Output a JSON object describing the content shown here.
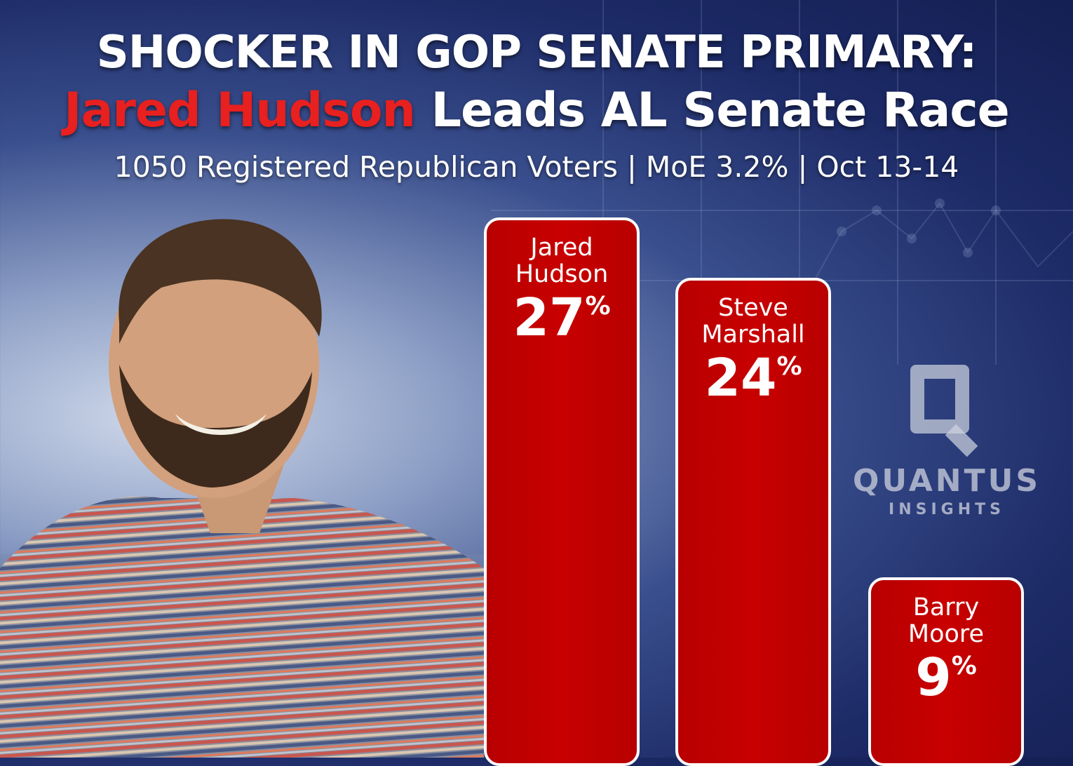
{
  "header": {
    "title_line1": "SHOCKER IN GOP SENATE PRIMARY:",
    "title_line2_highlight": "Jared Hudson",
    "title_line2_rest": " Leads AL Senate Race",
    "subtitle": "1050 Registered Republican Voters | MoE 3.2% | Oct 13-14"
  },
  "logo": {
    "wordmark": "QUANTUS",
    "submark": "INSIGHTS"
  },
  "colors": {
    "bar": "#c80000",
    "highlight": "#e8201f",
    "background": "#1c2a66"
  },
  "chart_data": {
    "type": "bar",
    "title": "SHOCKER IN GOP SENATE PRIMARY: Jared Hudson Leads AL Senate Race",
    "subtitle": "1050 Registered Republican Voters | MoE 3.2% | Oct 13-14",
    "categories": [
      "Jared\nHudson",
      "Steve\nMarshall",
      "Barry\nMoore"
    ],
    "values": [
      27,
      24,
      9
    ],
    "unit": "%",
    "value_labels": [
      "27",
      "24",
      "9"
    ],
    "ylim": [
      0,
      27
    ],
    "grid": false,
    "legend": "none"
  }
}
